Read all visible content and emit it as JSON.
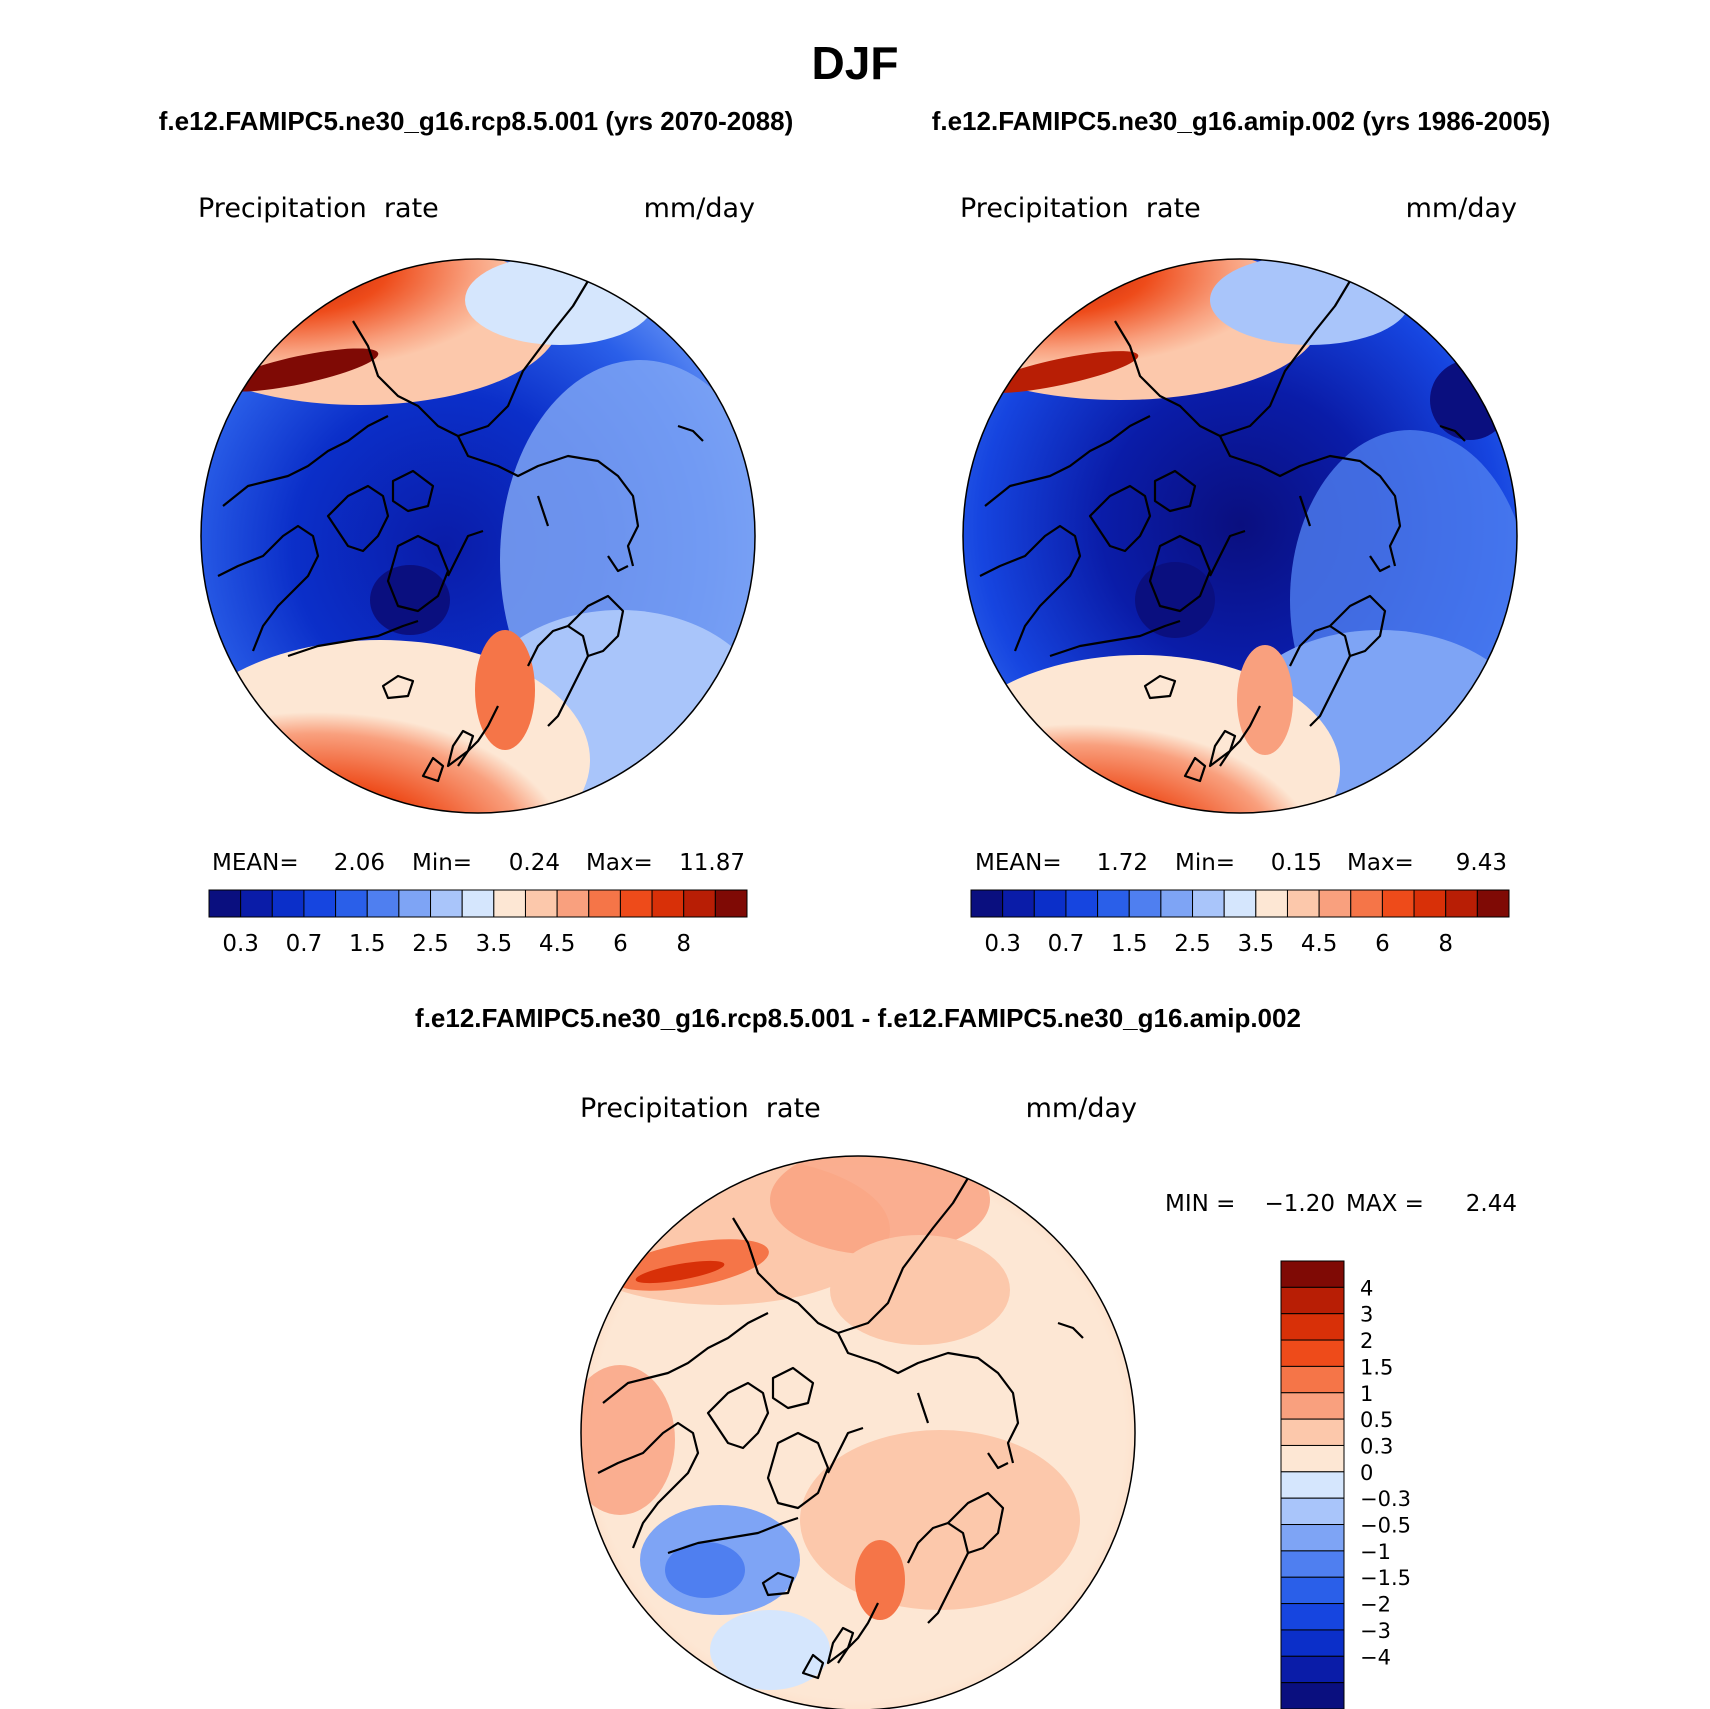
{
  "page": {
    "season": "DJF",
    "case_title": "f.e12.FAMIPC5.ne30_g16.rcp8.5.001 (yrs 2070-2088)",
    "control_title": "f.e12.FAMIPC5.ne30_g16.amip.002 (yrs 1986-2005)",
    "diff_title": "f.e12.FAMIPC5.ne30_g16.rcp8.5.001 - f.e12.FAMIPC5.ne30_g16.amip.002"
  },
  "colors": {
    "abs_scale": [
      "#0a0f7f",
      "#0a1ca8",
      "#0b2fc9",
      "#1645e0",
      "#2a5fe9",
      "#4f7ff0",
      "#7ea4f5",
      "#a9c5fa",
      "#d5e6fd",
      "#fde7d4",
      "#fcc8ab",
      "#f9a07e",
      "#f57548",
      "#ee4b1a",
      "#d83008",
      "#b81e05",
      "#7f0a05"
    ],
    "diff_scale": [
      "#0a0f7f",
      "#0a1ca8",
      "#0b2fc9",
      "#1645e0",
      "#2a5fe9",
      "#4f7ff0",
      "#7ea4f5",
      "#a9c5fa",
      "#d5e6fd",
      "#fde7d4",
      "#fcc8ab",
      "#f9a07e",
      "#f57548",
      "#ee4b1a",
      "#d83008",
      "#b81e05",
      "#7f0a05"
    ]
  },
  "chart_data": [
    {
      "type": "heatmap",
      "projection": "north-polar-stereographic",
      "variable": "Precipitation  rate",
      "units": "mm/day",
      "stats": {
        "mean_label": "MEAN=",
        "mean": "2.06",
        "min_label": "Min=",
        "min": "0.24",
        "max_label": "Max=",
        "max": "11.87"
      },
      "colorbar_orientation": "horizontal",
      "colorbar_ticks": [
        "0.3",
        "0.7",
        "1.5",
        "2.5",
        "3.5",
        "4.5",
        "6",
        "8"
      ]
    },
    {
      "type": "heatmap",
      "projection": "north-polar-stereographic",
      "variable": "Precipitation  rate",
      "units": "mm/day",
      "stats": {
        "mean_label": "MEAN=",
        "mean": "1.72",
        "min_label": "Min=",
        "min": "0.15",
        "max_label": "Max=",
        "max": "9.43"
      },
      "colorbar_orientation": "horizontal",
      "colorbar_ticks": [
        "0.3",
        "0.7",
        "1.5",
        "2.5",
        "3.5",
        "4.5",
        "6",
        "8"
      ]
    },
    {
      "type": "heatmap",
      "projection": "north-polar-stereographic",
      "variable": "Precipitation  rate",
      "units": "mm/day",
      "stats": {
        "min_label": "MIN =",
        "min": "−1.20",
        "max_label": "MAX =",
        "max": "2.44"
      },
      "colorbar_orientation": "vertical",
      "colorbar_ticks": [
        "4",
        "3",
        "2",
        "1.5",
        "1",
        "0.5",
        "0.3",
        "0",
        "−0.3",
        "−0.5",
        "−1",
        "−1.5",
        "−2",
        "−3",
        "−4"
      ]
    }
  ]
}
